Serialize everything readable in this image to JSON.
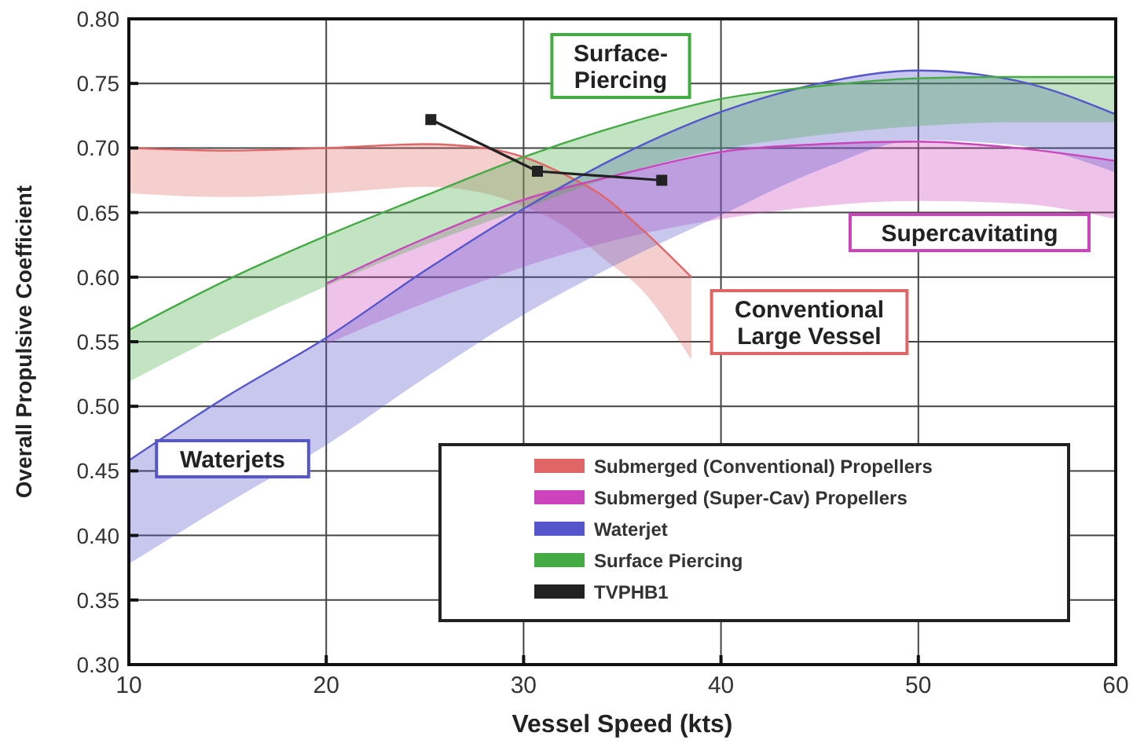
{
  "chart_data": {
    "type": "line",
    "xlabel": "Vessel Speed (kts)",
    "ylabel": "Overall Propulsive Coefficient",
    "xlim": [
      10,
      60
    ],
    "xticks": [
      10,
      20,
      30,
      40,
      50,
      60
    ],
    "ylim": [
      0.3,
      0.8
    ],
    "yticks": [
      {
        "value": 0.3,
        "label": "0.30"
      },
      {
        "value": 0.35,
        "label": "0.35"
      },
      {
        "value": 0.4,
        "label": "0.40"
      },
      {
        "value": 0.45,
        "label": "0.45"
      },
      {
        "value": 0.5,
        "label": "0.50"
      },
      {
        "value": 0.55,
        "label": "0.55"
      },
      {
        "value": 0.6,
        "label": "0.60"
      },
      {
        "value": 0.65,
        "label": "0.65"
      },
      {
        "value": 0.7,
        "label": "0.70"
      },
      {
        "value": 0.75,
        "label": "0.75"
      },
      {
        "value": 0.8,
        "label": "0.80"
      }
    ],
    "grid": true,
    "legend": "bottom right",
    "series": [
      {
        "name": "Submerged (Conventional) Propellers",
        "color": "#e06666",
        "x": [
          10,
          15,
          20,
          25,
          28,
          30,
          32,
          34,
          36,
          38.5
        ],
        "values": [
          0.7,
          0.698,
          0.7,
          0.703,
          0.7,
          0.693,
          0.68,
          0.663,
          0.637,
          0.6
        ],
        "upper": [
          0.7,
          0.698,
          0.7,
          0.703,
          0.7,
          0.693,
          0.68,
          0.663,
          0.637,
          0.6
        ],
        "lower": [
          0.665,
          0.662,
          0.665,
          0.67,
          0.665,
          0.655,
          0.64,
          0.615,
          0.59,
          0.536
        ]
      },
      {
        "name": "Submerged (Super-Cav) Propellers",
        "color": "#cc44bb",
        "x": [
          20,
          25,
          30,
          35,
          40,
          45,
          50,
          55,
          60
        ],
        "values": [
          0.595,
          0.63,
          0.66,
          0.68,
          0.697,
          0.703,
          0.705,
          0.7,
          0.69
        ],
        "upper": [
          0.595,
          0.63,
          0.66,
          0.68,
          0.697,
          0.703,
          0.705,
          0.7,
          0.69
        ],
        "lower": [
          0.548,
          0.58,
          0.608,
          0.63,
          0.645,
          0.655,
          0.659,
          0.657,
          0.645
        ]
      },
      {
        "name": "Waterjet",
        "color": "#5555cc",
        "x": [
          10,
          15,
          20,
          25,
          30,
          35,
          40,
          45,
          50,
          55,
          60
        ],
        "values": [
          0.458,
          0.508,
          0.553,
          0.605,
          0.653,
          0.695,
          0.728,
          0.75,
          0.76,
          0.752,
          0.726
        ],
        "upper": [
          0.458,
          0.508,
          0.553,
          0.605,
          0.653,
          0.695,
          0.728,
          0.75,
          0.76,
          0.752,
          0.726
        ],
        "lower": [
          0.378,
          0.425,
          0.47,
          0.522,
          0.571,
          0.612,
          0.648,
          0.683,
          0.706,
          0.702,
          0.681
        ]
      },
      {
        "name": "Surface Piercing",
        "color": "#44aa44",
        "x": [
          10,
          15,
          20,
          25,
          30,
          35,
          40,
          45,
          50,
          55,
          60
        ],
        "values": [
          0.559,
          0.598,
          0.632,
          0.663,
          0.693,
          0.718,
          0.738,
          0.748,
          0.754,
          0.755,
          0.755
        ],
        "upper": [
          0.559,
          0.598,
          0.632,
          0.663,
          0.693,
          0.718,
          0.738,
          0.748,
          0.754,
          0.755,
          0.755
        ],
        "lower": [
          0.519,
          0.558,
          0.593,
          0.625,
          0.653,
          0.68,
          0.699,
          0.71,
          0.717,
          0.72,
          0.72
        ]
      },
      {
        "name": "TVPHB1",
        "color": "#222222",
        "marker": "square",
        "x": [
          25.3,
          30.7,
          37
        ],
        "values": [
          0.722,
          0.682,
          0.675
        ]
      }
    ],
    "annotations": [
      "Surface-\nPiercing",
      "Supercavitating",
      "Conventional\nLarge Vessel",
      "Waterjets"
    ]
  }
}
